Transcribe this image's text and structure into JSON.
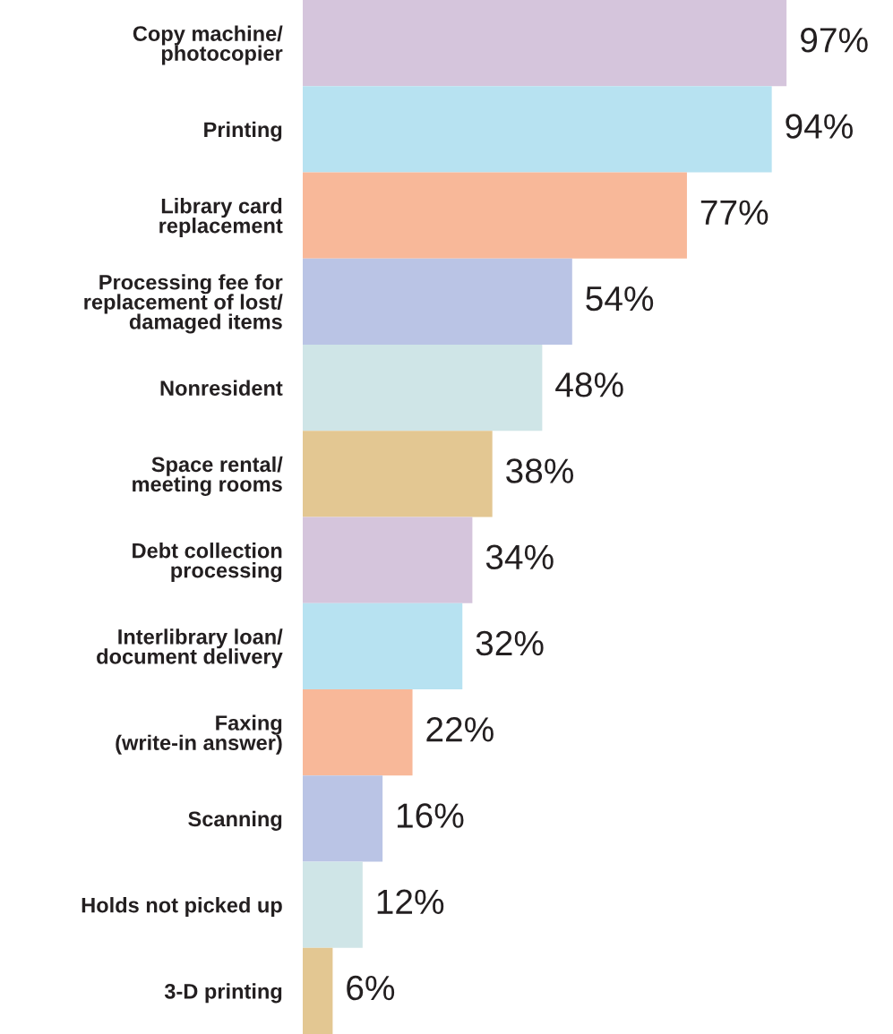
{
  "chart_data": {
    "type": "bar",
    "orientation": "horizontal",
    "categories": [
      "Copy machine/\nphotocopier",
      "Printing",
      "Library card\nreplacement",
      "Processing fee for\nreplacement of lost/\ndamaged items",
      "Nonresident",
      "Space rental/\nmeeting rooms",
      "Debt collection\nprocessing",
      "Interlibrary loan/\ndocument delivery",
      "Faxing\n(write-in answer)",
      "Scanning",
      "Holds not picked up",
      "3-D printing"
    ],
    "values": [
      97,
      94,
      77,
      54,
      48,
      38,
      34,
      32,
      22,
      16,
      12,
      6
    ],
    "colors": [
      "#d5c5dc",
      "#b7e2f1",
      "#f8b899",
      "#bac4e5",
      "#cfe5e7",
      "#e3c792",
      "#d5c5dc",
      "#b7e2f1",
      "#f8b899",
      "#bac4e5",
      "#cfe5e7",
      "#e3c792"
    ],
    "value_labels": [
      "97%",
      "94%",
      "77%",
      "54%",
      "48%",
      "38%",
      "34%",
      "32%",
      "22%",
      "16%",
      "12%",
      "6%"
    ],
    "tick_labels": "y",
    "grid": false,
    "legend": false
  }
}
